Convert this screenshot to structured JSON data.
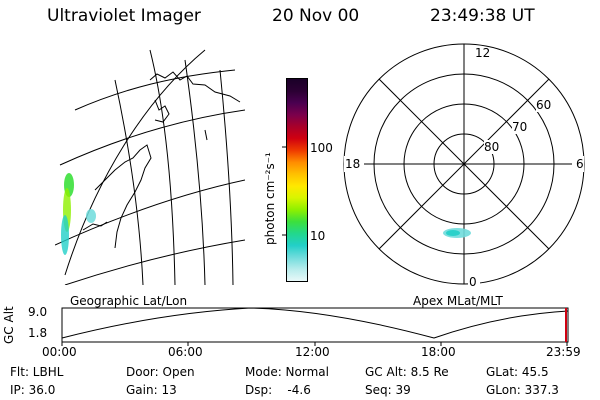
{
  "header": {
    "instrument": "Ultraviolet Imager",
    "date": "20 Nov 00",
    "time": "23:49:38 UT"
  },
  "colorbar": {
    "unit_label": "photon cm⁻²s⁻¹",
    "ticks": [
      "100",
      "10"
    ],
    "colors": [
      "#1a0028",
      "#2b0033",
      "#4a0050",
      "#7a004c",
      "#a8002a",
      "#d00010",
      "#ee3a00",
      "#ff8c00",
      "#ffc000",
      "#ffe800",
      "#d8f500",
      "#8ef000",
      "#3ce03c",
      "#22d88c",
      "#22cfc8",
      "#6fdcdc",
      "#b7ecec",
      "#e8f8f8"
    ]
  },
  "geo_map": {
    "label": "Geographic Lat/Lon"
  },
  "polar_plot": {
    "label": "Apex MLat/MLT",
    "mlt_labels": {
      "top": "12",
      "left": "18",
      "right": "6",
      "bottom": "0"
    },
    "lat_labels": [
      "60",
      "70",
      "80"
    ]
  },
  "orbit_plot": {
    "axis_label": "GC Alt",
    "y_ticks": [
      "9.0",
      "1.8"
    ],
    "x_ticks": [
      "00:00",
      "06:00",
      "12:00",
      "18:00",
      "23:59"
    ]
  },
  "info_row1": {
    "flt": "Flt: LBHL",
    "door": "Door: Open",
    "mode": "Mode: Normal",
    "gc_alt": "GC Alt: 8.5 Re",
    "glat": "GLat:  45.5"
  },
  "info_row2": {
    "ip": "IP: 36.0",
    "gain": "Gain: 13",
    "dsp": "Dsp:    -4.6",
    "seq": "Seq: 39",
    "glon": "GLon: 337.3"
  }
}
